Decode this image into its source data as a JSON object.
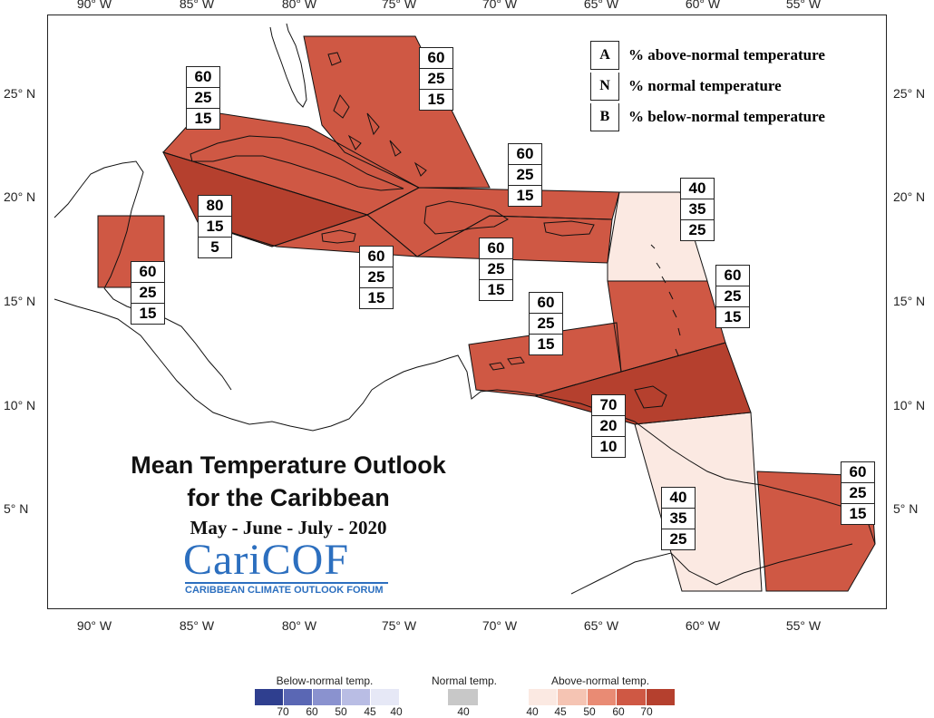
{
  "axes": {
    "lon_ticks": [
      "90° W",
      "85° W",
      "80° W",
      "75° W",
      "70° W",
      "65° W",
      "60° W",
      "55° W"
    ],
    "lat_ticks": [
      "25° N",
      "20° N",
      "15° N",
      "10° N",
      "5° N"
    ]
  },
  "legend": {
    "rows": [
      {
        "key": "A",
        "label": "% above-normal temperature"
      },
      {
        "key": "N",
        "label": "% normal temperature"
      },
      {
        "key": "B",
        "label": "% below-normal temperature"
      }
    ]
  },
  "regions": [
    {
      "name": "bahamas",
      "values": [
        "60",
        "25",
        "15"
      ],
      "color": "#cf5844"
    },
    {
      "name": "cuba",
      "values": [
        "60",
        "25",
        "15"
      ],
      "color": "#cf5844"
    },
    {
      "name": "cayman",
      "values": [
        "80",
        "15",
        "5"
      ],
      "color": "#b5402e"
    },
    {
      "name": "belize",
      "values": [
        "60",
        "25",
        "15"
      ],
      "color": "#cf5844"
    },
    {
      "name": "jamaica",
      "values": [
        "60",
        "25",
        "15"
      ],
      "color": "#cf5844"
    },
    {
      "name": "hispaniola",
      "values": [
        "60",
        "25",
        "15"
      ],
      "color": "#cf5844"
    },
    {
      "name": "puerto-rico",
      "values": [
        "60",
        "25",
        "15"
      ],
      "color": "#cf5844"
    },
    {
      "name": "leeward-islands",
      "values": [
        "40",
        "35",
        "25"
      ],
      "color": "#fbe9e2"
    },
    {
      "name": "windward-islands",
      "values": [
        "60",
        "25",
        "15"
      ],
      "color": "#cf5844"
    },
    {
      "name": "abc-islands",
      "values": [
        "60",
        "25",
        "15"
      ],
      "color": "#cf5844"
    },
    {
      "name": "trinidad",
      "values": [
        "70",
        "20",
        "10"
      ],
      "color": "#b5402e"
    },
    {
      "name": "guyana",
      "values": [
        "40",
        "35",
        "25"
      ],
      "color": "#fbe9e2"
    },
    {
      "name": "suriname-french-guiana",
      "values": [
        "60",
        "25",
        "15"
      ],
      "color": "#cf5844"
    }
  ],
  "title": {
    "line1": "Mean Temperature Outlook",
    "line2": "for the Caribbean",
    "line3": "May - June - July - 2020"
  },
  "logo": {
    "name": "CariCOF",
    "subtitle": "CARIBBEAN CLIMATE OUTLOOK FORUM"
  },
  "colorbar": {
    "below": {
      "title": "Below-normal temp.",
      "ticks": [
        "70",
        "60",
        "50",
        "45",
        "40"
      ],
      "colors": [
        "#2f3f8f",
        "#5a67b4",
        "#8a92cf",
        "#b9bde4",
        "#e6e8f6"
      ]
    },
    "normal": {
      "title": "Normal temp.",
      "ticks": [
        "40"
      ],
      "colors": [
        "#c8c8c8"
      ]
    },
    "above": {
      "title": "Above-normal temp.",
      "ticks": [
        "40",
        "45",
        "50",
        "60",
        "70"
      ],
      "colors": [
        "#fbe9e2",
        "#f5c4b3",
        "#e98b74",
        "#cf5844",
        "#b5402e"
      ]
    }
  }
}
